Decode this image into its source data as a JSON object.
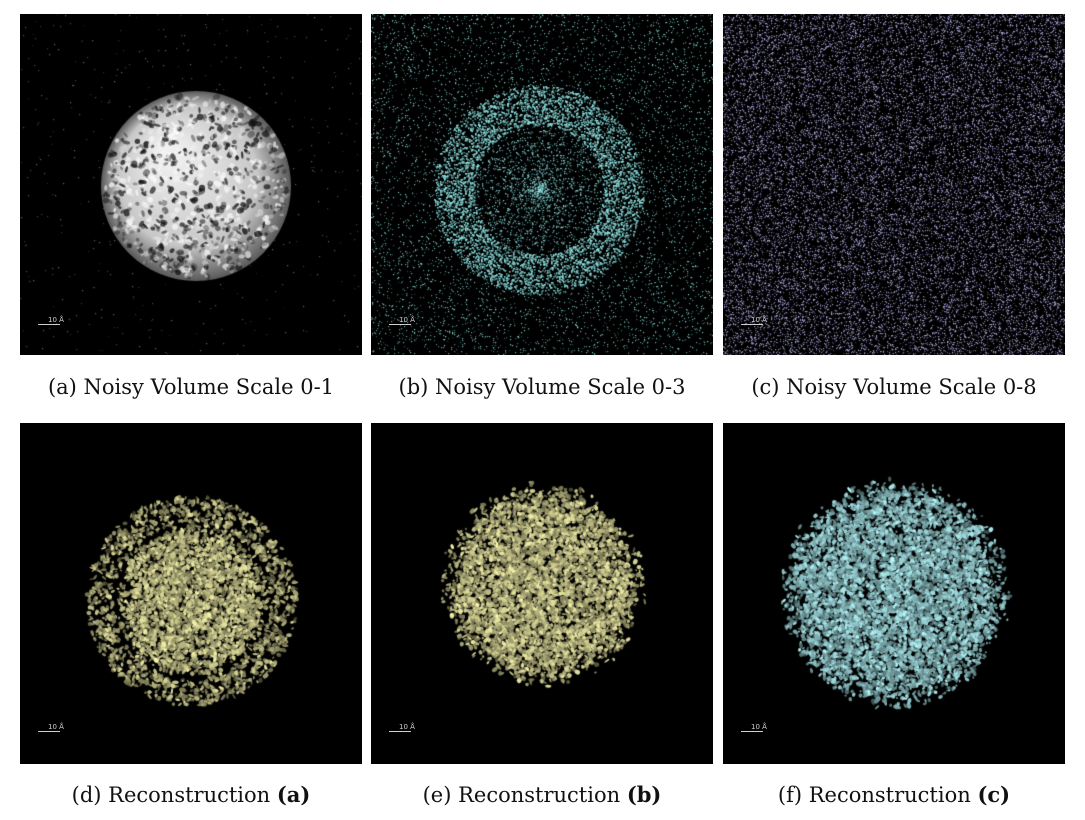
{
  "figure": {
    "scale_label": "10 Å",
    "panels": [
      {
        "id": "a",
        "caption_prefix": "(a) Noisy Volume Scale 0-1",
        "caption_bold": "",
        "style": "sphere-gray"
      },
      {
        "id": "b",
        "caption_prefix": "(b) Noisy Volume Scale 0-3",
        "caption_bold": "",
        "style": "noise-ring-cyan"
      },
      {
        "id": "c",
        "caption_prefix": "(c) Noisy Volume Scale 0-8",
        "caption_bold": "",
        "style": "noise-uniform-lavender"
      },
      {
        "id": "d",
        "caption_prefix": "(d) Reconstruction ",
        "caption_bold": "(a)",
        "style": "blob-yellow-ring"
      },
      {
        "id": "e",
        "caption_prefix": "(e) Reconstruction ",
        "caption_bold": "(b)",
        "style": "blob-yellow"
      },
      {
        "id": "f",
        "caption_prefix": "(f) Reconstruction ",
        "caption_bold": "(c)",
        "style": "blob-cyan"
      }
    ],
    "colors": {
      "panel_background": "#000000",
      "gray_surface": "#c8c8c8",
      "cyan_noise": "#8fe3e3",
      "lavender_noise": "#b4b0e8",
      "yellow_surface": "#e6e3a0",
      "cyan_surface": "#a8e6ea"
    }
  }
}
